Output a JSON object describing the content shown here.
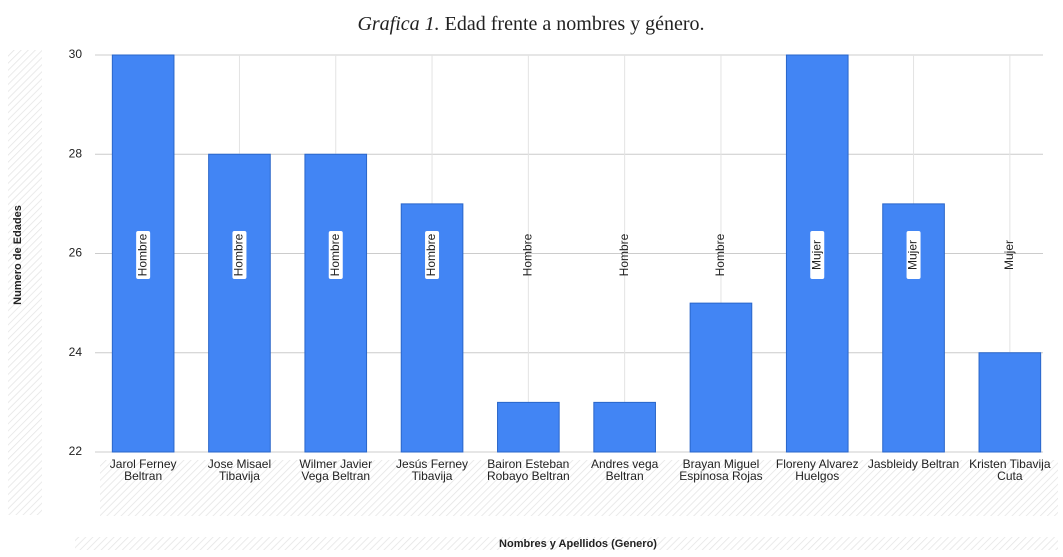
{
  "chart_data": {
    "type": "bar",
    "title_prefix": "Grafica 1.",
    "title": "Edad frente a nombres y género.",
    "y_label": "Numero de Edades",
    "x_label": "Nombres y Apellidos (Genero)",
    "categories": [
      "Jarol Ferney Beltran",
      "Jose Misael Tibavija",
      "Wilmer Javier Vega Beltran",
      "Jesús Ferney Tibavija",
      "Bairon Esteban Robayo Beltran",
      "Andres vega Beltran",
      "Brayan Miguel Espinosa Rojas",
      "Floreny Alvarez Huelgos",
      "Jasbleidy Beltran",
      "Kristen Tibavija Cuta"
    ],
    "values": [
      30,
      28,
      28,
      27,
      23,
      23,
      25,
      30,
      27,
      24
    ],
    "annotations": [
      "Hombre",
      "Hombre",
      "Hombre",
      "Hombre",
      "Hombre",
      "Hombre",
      "Hombre",
      "Mujer",
      "Mujer",
      "Mujer"
    ],
    "color": "#4285f4",
    "ylim": [
      22,
      30
    ],
    "yticks": [
      22,
      24,
      26,
      28,
      30
    ],
    "grid": true
  }
}
